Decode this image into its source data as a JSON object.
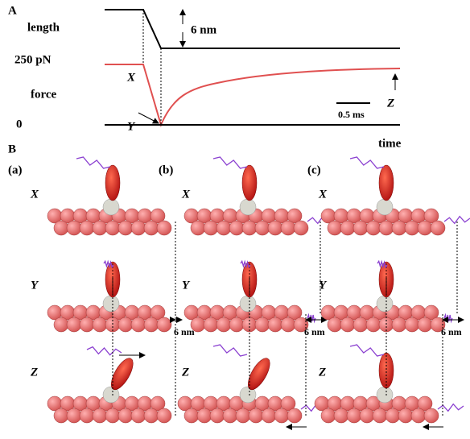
{
  "panel_a": {
    "label": "A",
    "length_label": "length",
    "step_label": "6 nm",
    "force_value": "250 pN",
    "force_label": "force",
    "zero_label": "0",
    "scale_bar": "0.5 ms",
    "time_label": "time",
    "point_x": "X",
    "point_y": "Y",
    "point_z": "Z"
  },
  "panel_b": {
    "label": "B",
    "columns": [
      {
        "label": "(a)",
        "rows": [
          "X",
          "Y",
          "Z"
        ],
        "displacement": "6 nm"
      },
      {
        "label": "(b)",
        "rows": [
          "X",
          "Y",
          "Z"
        ],
        "displacement": "6 nm"
      },
      {
        "label": "(c)",
        "rows": [
          "X",
          "Y",
          "Z"
        ],
        "displacement": "6 nm"
      }
    ]
  }
}
